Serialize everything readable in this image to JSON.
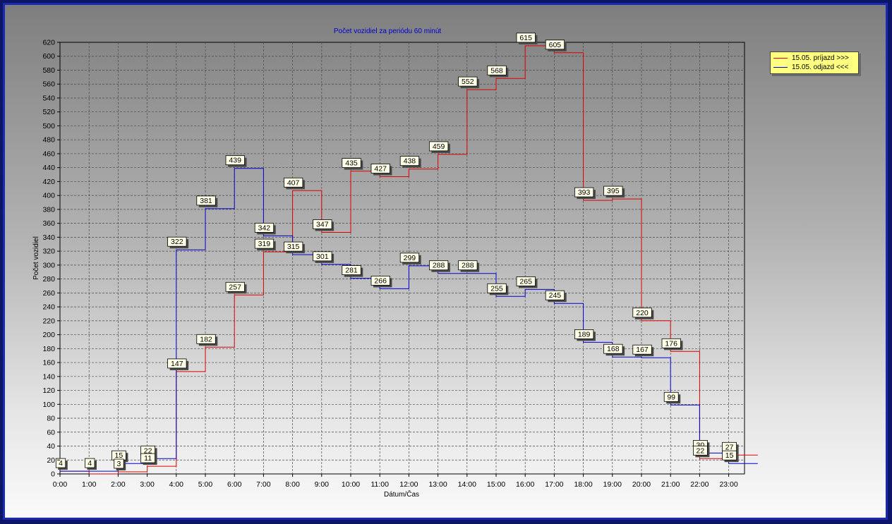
{
  "chart_data": {
    "type": "line",
    "step": true,
    "title": "Počet vozidiel za periódu 60 minút",
    "xlabel": "Dátum/Čas",
    "ylabel": "Počet vozidiel",
    "categories": [
      "0:00",
      "1:00",
      "2:00",
      "3:00",
      "4:00",
      "5:00",
      "6:00",
      "7:00",
      "8:00",
      "9:00",
      "10:00",
      "11:00",
      "12:00",
      "13:00",
      "14:00",
      "15:00",
      "16:00",
      "17:00",
      "18:00",
      "19:00",
      "20:00",
      "21:00",
      "22:00",
      "23:00"
    ],
    "ylim": [
      0,
      620
    ],
    "ytick_step": 20,
    "grid": true,
    "legend": "top-right",
    "series": [
      {
        "name": "15.05.  príjazd >>>",
        "color": "#e00000",
        "values": [
          4,
          0,
          3,
          11,
          147,
          182,
          257,
          319,
          407,
          347,
          435,
          427,
          438,
          459,
          552,
          568,
          615,
          605,
          393,
          395,
          220,
          176,
          22,
          27
        ]
      },
      {
        "name": "15.05.  odjazd <<<",
        "color": "#0000d0",
        "values": [
          4,
          4,
          15,
          22,
          322,
          381,
          439,
          342,
          315,
          301,
          281,
          266,
          299,
          288,
          288,
          255,
          265,
          245,
          189,
          168,
          167,
          99,
          30,
          15
        ]
      }
    ],
    "data_labels": [
      {
        "text": "4",
        "x": 0,
        "y": 4
      },
      {
        "text": "4",
        "x": 1,
        "y": 4
      },
      {
        "text": "15",
        "x": 2,
        "y": 15
      },
      {
        "text": "3",
        "x": 2,
        "y": 3
      },
      {
        "text": "22",
        "x": 3,
        "y": 22
      },
      {
        "text": "11",
        "x": 3,
        "y": 11
      },
      {
        "text": "322",
        "x": 4,
        "y": 322
      },
      {
        "text": "147",
        "x": 4,
        "y": 147
      },
      {
        "text": "381",
        "x": 5,
        "y": 381
      },
      {
        "text": "182",
        "x": 5,
        "y": 182
      },
      {
        "text": "439",
        "x": 6,
        "y": 439
      },
      {
        "text": "257",
        "x": 6,
        "y": 257
      },
      {
        "text": "342",
        "x": 7,
        "y": 342
      },
      {
        "text": "319",
        "x": 7,
        "y": 319
      },
      {
        "text": "407",
        "x": 8,
        "y": 407
      },
      {
        "text": "315",
        "x": 8,
        "y": 315
      },
      {
        "text": "347",
        "x": 9,
        "y": 347
      },
      {
        "text": "301",
        "x": 9,
        "y": 301
      },
      {
        "text": "435",
        "x": 10,
        "y": 435
      },
      {
        "text": "281",
        "x": 10,
        "y": 281
      },
      {
        "text": "427",
        "x": 11,
        "y": 427
      },
      {
        "text": "266",
        "x": 11,
        "y": 266
      },
      {
        "text": "438",
        "x": 12,
        "y": 438
      },
      {
        "text": "299",
        "x": 12,
        "y": 299
      },
      {
        "text": "459",
        "x": 13,
        "y": 459
      },
      {
        "text": "288",
        "x": 13,
        "y": 288
      },
      {
        "text": "552",
        "x": 14,
        "y": 552
      },
      {
        "text": "288",
        "x": 14,
        "y": 288
      },
      {
        "text": "568",
        "x": 15,
        "y": 568
      },
      {
        "text": "255",
        "x": 15,
        "y": 255
      },
      {
        "text": "615",
        "x": 16,
        "y": 615
      },
      {
        "text": "265",
        "x": 16,
        "y": 265
      },
      {
        "text": "605",
        "x": 17,
        "y": 605
      },
      {
        "text": "245",
        "x": 17,
        "y": 245
      },
      {
        "text": "393",
        "x": 18,
        "y": 393
      },
      {
        "text": "189",
        "x": 18,
        "y": 189
      },
      {
        "text": "395",
        "x": 19,
        "y": 395
      },
      {
        "text": "168",
        "x": 19,
        "y": 168
      },
      {
        "text": "220",
        "x": 20,
        "y": 220
      },
      {
        "text": "167",
        "x": 20,
        "y": 167
      },
      {
        "text": "176",
        "x": 21,
        "y": 176
      },
      {
        "text": "99",
        "x": 21,
        "y": 99
      },
      {
        "text": "30",
        "x": 22,
        "y": 30
      },
      {
        "text": "22",
        "x": 22,
        "y": 22
      },
      {
        "text": "27",
        "x": 23,
        "y": 27
      },
      {
        "text": "15",
        "x": 23,
        "y": 15
      }
    ]
  }
}
